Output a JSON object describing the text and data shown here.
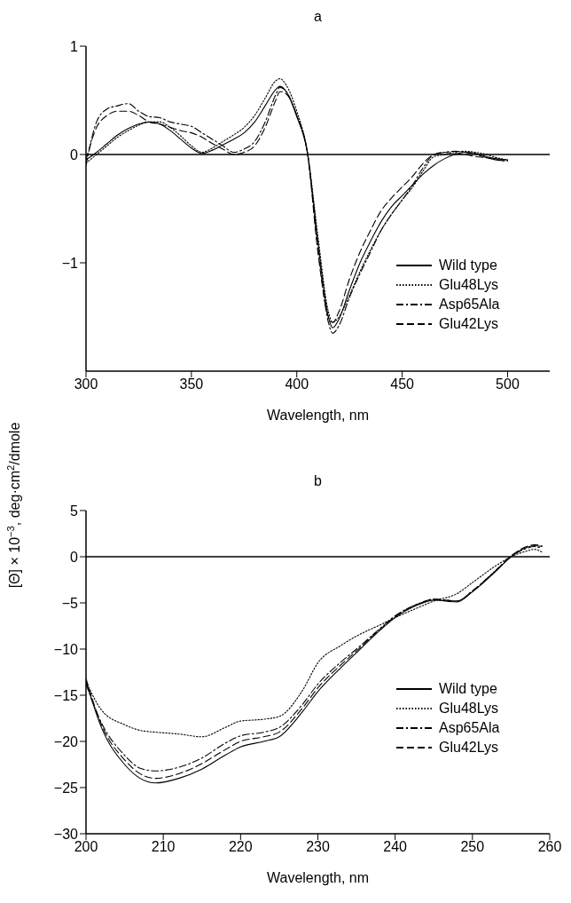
{
  "chart_data": [
    {
      "type": "line",
      "title": "a",
      "xlabel": "Wavelength, nm",
      "xlim": [
        300,
        520
      ],
      "xticks": [
        300,
        350,
        400,
        450,
        500
      ],
      "ylim": [
        -2,
        1
      ],
      "yticks": [
        1,
        0,
        -1
      ],
      "grid": false,
      "legend": "bottom right",
      "marker": "none",
      "ref_lines": [
        {
          "axis": "y",
          "value": 0,
          "color": "#000000"
        }
      ],
      "x": [
        300,
        305,
        310,
        315,
        320,
        325,
        330,
        335,
        340,
        345,
        350,
        355,
        360,
        365,
        370,
        375,
        380,
        385,
        390,
        392,
        395,
        400,
        405,
        410,
        415,
        417,
        420,
        425,
        430,
        435,
        440,
        445,
        450,
        455,
        460,
        465,
        470,
        475,
        480,
        485,
        490,
        495,
        500
      ],
      "series": [
        {
          "name": "Wild type",
          "color": "#000000",
          "line_style": "solid",
          "values": [
            -0.05,
            0.02,
            0.1,
            0.18,
            0.24,
            0.28,
            0.3,
            0.28,
            0.22,
            0.14,
            0.06,
            0.01,
            0.04,
            0.09,
            0.14,
            0.2,
            0.3,
            0.45,
            0.6,
            0.63,
            0.58,
            0.35,
            0.02,
            -0.8,
            -1.5,
            -1.6,
            -1.52,
            -1.25,
            -1.0,
            -0.8,
            -0.62,
            -0.48,
            -0.38,
            -0.28,
            -0.18,
            -0.1,
            -0.04,
            0.0,
            0.02,
            0.01,
            -0.02,
            -0.04,
            -0.05
          ]
        },
        {
          "name": "Glu48Lys",
          "color": "#000000",
          "line_style": "dotted",
          "values": [
            -0.08,
            0.0,
            0.08,
            0.16,
            0.22,
            0.27,
            0.3,
            0.3,
            0.25,
            0.17,
            0.08,
            0.02,
            0.06,
            0.12,
            0.18,
            0.25,
            0.36,
            0.52,
            0.68,
            0.7,
            0.64,
            0.4,
            0.03,
            -0.75,
            -1.45,
            -1.55,
            -1.5,
            -1.3,
            -1.08,
            -0.88,
            -0.7,
            -0.55,
            -0.42,
            -0.3,
            -0.15,
            -0.02,
            0.0,
            0.02,
            0.03,
            0.02,
            0.0,
            -0.03,
            -0.05
          ]
        },
        {
          "name": "Asp65Ala",
          "color": "#000000",
          "line_style": "dashdot",
          "values": [
            -0.1,
            0.3,
            0.42,
            0.45,
            0.47,
            0.4,
            0.35,
            0.34,
            0.3,
            0.28,
            0.26,
            0.2,
            0.14,
            0.08,
            0.02,
            0.05,
            0.12,
            0.3,
            0.55,
            0.62,
            0.58,
            0.36,
            0.02,
            -0.85,
            -1.55,
            -1.65,
            -1.58,
            -1.32,
            -1.1,
            -0.9,
            -0.7,
            -0.55,
            -0.42,
            -0.28,
            -0.12,
            0.0,
            0.02,
            0.03,
            0.02,
            0.0,
            -0.03,
            -0.05,
            -0.06
          ]
        },
        {
          "name": "Glu42Lys",
          "color": "#000000",
          "line_style": "dashed",
          "values": [
            -0.05,
            0.25,
            0.36,
            0.4,
            0.4,
            0.36,
            0.3,
            0.28,
            0.25,
            0.22,
            0.2,
            0.16,
            0.1,
            0.05,
            0.0,
            0.02,
            0.08,
            0.25,
            0.5,
            0.58,
            0.56,
            0.36,
            0.02,
            -0.9,
            -1.5,
            -1.55,
            -1.45,
            -1.15,
            -0.9,
            -0.7,
            -0.52,
            -0.4,
            -0.3,
            -0.2,
            -0.08,
            0.0,
            0.02,
            0.01,
            0.0,
            -0.02,
            -0.03,
            -0.05,
            -0.06
          ]
        }
      ]
    },
    {
      "type": "line",
      "title": "b",
      "xlabel": "Wavelength, nm",
      "ylabel": "[Θ] × 10$^{−3}$, deg·cm$^{2}$/dmole",
      "xlim": [
        200,
        260
      ],
      "xticks": [
        200,
        210,
        220,
        230,
        240,
        250,
        260
      ],
      "ylim": [
        -30,
        5
      ],
      "yticks": [
        5,
        0,
        -5,
        -10,
        -15,
        -20,
        -25,
        -30
      ],
      "grid": false,
      "legend": "bottom right",
      "marker": "none",
      "ref_lines": [
        {
          "axis": "y",
          "value": 0,
          "color": "#000000"
        }
      ],
      "x": [
        200,
        202,
        205,
        207,
        209,
        212,
        215,
        218,
        220,
        223,
        225,
        228,
        230,
        233,
        235,
        238,
        240,
        243,
        245,
        248,
        250,
        253,
        255,
        257,
        258,
        259
      ],
      "series": [
        {
          "name": "Wild type",
          "color": "#000000",
          "line_style": "solid",
          "values": [
            -13.5,
            -18.5,
            -22.5,
            -24,
            -24.5,
            -24,
            -23,
            -21.5,
            -20.6,
            -20,
            -19.5,
            -16.8,
            -14.6,
            -12,
            -10.4,
            -8,
            -6.6,
            -5.2,
            -4.7,
            -4.9,
            -3.8,
            -1.6,
            0,
            1,
            1.2,
            1.1
          ]
        },
        {
          "name": "Glu48Lys",
          "color": "#000000",
          "line_style": "dotted",
          "values": [
            -13.5,
            -16.6,
            -18.2,
            -18.8,
            -19,
            -19.2,
            -19.5,
            -18.5,
            -17.8,
            -17.6,
            -17.3,
            -14.5,
            -11.5,
            -9.6,
            -8.6,
            -7.4,
            -6.6,
            -5.5,
            -4.8,
            -4,
            -2.8,
            -1,
            0,
            0.6,
            0.8,
            0.5
          ]
        },
        {
          "name": "Asp65Ala",
          "color": "#000000",
          "line_style": "dashdot",
          "values": [
            -13.8,
            -18,
            -21.5,
            -22.9,
            -23.2,
            -22.8,
            -21.8,
            -20.2,
            -19.4,
            -19,
            -18.5,
            -16,
            -13.8,
            -11.4,
            -10,
            -7.8,
            -6.4,
            -5.1,
            -4.6,
            -4.8,
            -3.7,
            -1.5,
            0,
            0.9,
            1.1,
            0.9
          ]
        },
        {
          "name": "Glu42Lys",
          "color": "#000000",
          "line_style": "dashed",
          "values": [
            -13.2,
            -18.2,
            -22,
            -23.5,
            -24,
            -23.5,
            -22.4,
            -20.9,
            -20,
            -19.5,
            -19,
            -16.4,
            -14.2,
            -11.7,
            -10.2,
            -7.9,
            -6.5,
            -5.1,
            -4.6,
            -4.8,
            -3.7,
            -1.5,
            0.1,
            1.1,
            1.3,
            1.2
          ]
        }
      ]
    }
  ]
}
